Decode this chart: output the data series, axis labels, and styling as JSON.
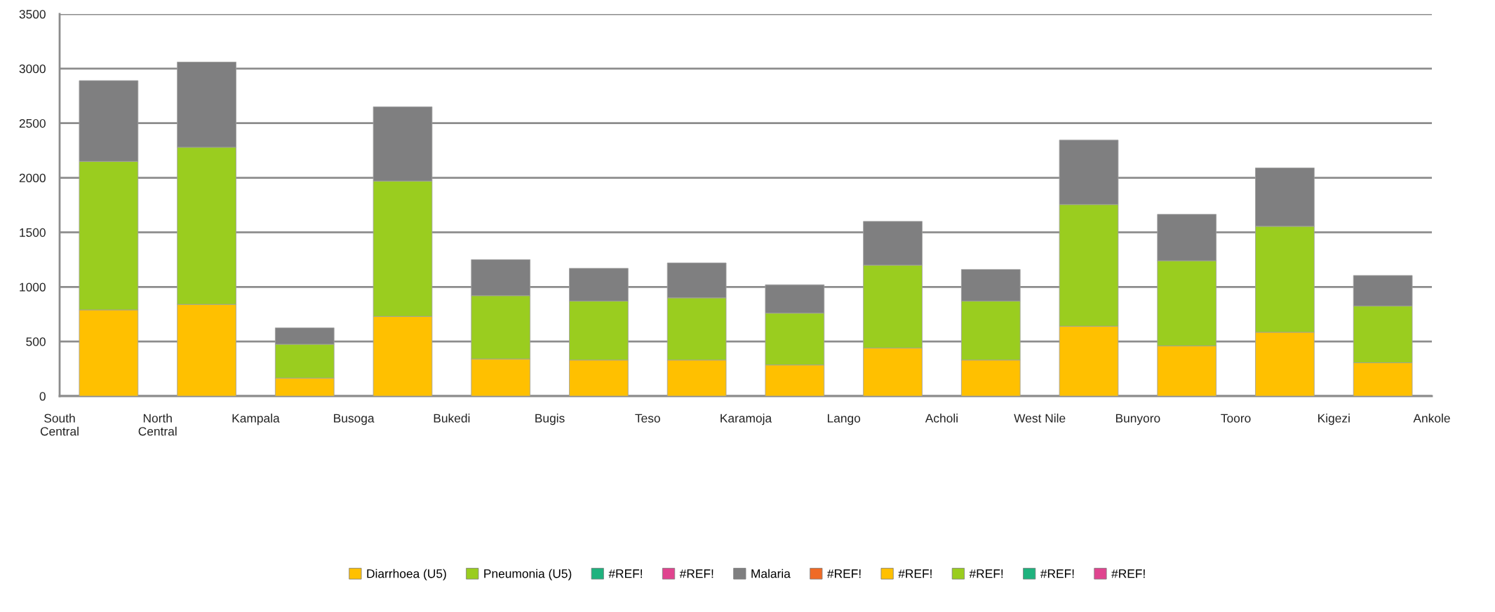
{
  "chart_data": {
    "type": "bar",
    "stacked": true,
    "categories": [
      "South\nCentral",
      "North\nCentral",
      "Kampala",
      "Busoga",
      "Bukedi",
      "Bugis",
      "Teso",
      "Karamoja",
      "Lango",
      "Acholi",
      "West Nile",
      "Bunyoro",
      "Tooro",
      "Kigezi",
      "Ankole"
    ],
    "series": [
      {
        "name": "Diarrhoea (U5)",
        "color": "#ffc000",
        "values": [
          790,
          840,
          165,
          730,
          340,
          330,
          330,
          285,
          440,
          330,
          640,
          460,
          585,
          305,
          null
        ]
      },
      {
        "name": "Pneumonia (U5)",
        "color": "#9acd1f",
        "values": [
          1360,
          1440,
          310,
          1240,
          580,
          540,
          570,
          475,
          760,
          540,
          1115,
          780,
          970,
          520,
          null
        ]
      },
      {
        "name": "#REF!",
        "color": "#1fb27e",
        "values": [
          null,
          null,
          null,
          null,
          null,
          null,
          null,
          null,
          null,
          null,
          null,
          null,
          null,
          null,
          null
        ]
      },
      {
        "name": "#REF!",
        "color": "#e0448f",
        "values": [
          null,
          null,
          null,
          null,
          null,
          null,
          null,
          null,
          null,
          null,
          null,
          null,
          null,
          null,
          null
        ]
      },
      {
        "name": "Malaria",
        "color": "#7f7f80",
        "values": [
          740,
          780,
          150,
          680,
          330,
          300,
          320,
          260,
          400,
          290,
          590,
          425,
          535,
          280,
          null
        ]
      },
      {
        "name": "#REF!",
        "color": "#f06a25",
        "values": [
          null,
          null,
          null,
          null,
          null,
          null,
          null,
          null,
          null,
          null,
          null,
          null,
          null,
          null,
          null
        ]
      },
      {
        "name": "#REF!",
        "color": "#ffc000",
        "values": [
          null,
          null,
          null,
          null,
          null,
          null,
          null,
          null,
          null,
          null,
          null,
          null,
          null,
          null,
          null
        ]
      },
      {
        "name": "#REF!",
        "color": "#9acd1f",
        "values": [
          null,
          null,
          null,
          null,
          null,
          null,
          null,
          null,
          null,
          null,
          null,
          null,
          null,
          null,
          null
        ]
      },
      {
        "name": "#REF!",
        "color": "#1fb27e",
        "values": [
          null,
          null,
          null,
          null,
          null,
          null,
          null,
          null,
          null,
          null,
          null,
          null,
          null,
          null,
          null
        ]
      },
      {
        "name": "#REF!",
        "color": "#e0448f",
        "values": [
          null,
          null,
          null,
          null,
          null,
          null,
          null,
          null,
          null,
          null,
          null,
          null,
          null,
          null,
          null
        ]
      }
    ],
    "ylim": [
      0,
      3500
    ],
    "yticks": [
      0,
      500,
      1000,
      1500,
      2000,
      2500,
      3000,
      3500
    ],
    "grid": "y",
    "legend": "bottom"
  }
}
